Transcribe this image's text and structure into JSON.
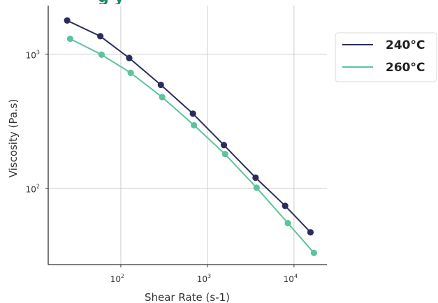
{
  "chart_data": {
    "type": "line",
    "title": "",
    "xlabel": "Shear Rate (s-1)",
    "ylabel": "Viscosity (Pa.s)",
    "xscale": "log",
    "yscale": "log",
    "xlim": [
      14.5,
      24000
    ],
    "ylim": [
      27,
      2300
    ],
    "x_ticks": [
      {
        "value": 100,
        "base": "10",
        "exp": "2"
      },
      {
        "value": 1000,
        "base": "10",
        "exp": "3"
      },
      {
        "value": 10000,
        "base": "10",
        "exp": "4"
      }
    ],
    "y_ticks": [
      {
        "value": 100,
        "base": "10",
        "exp": "2"
      },
      {
        "value": 1000,
        "base": "10",
        "exp": "3"
      }
    ],
    "grid": true,
    "legend_position": "right-top",
    "series": [
      {
        "name": "240°C",
        "color": "#2b2c5e",
        "x": [
          24,
          58,
          125,
          290,
          680,
          1550,
          3600,
          7900,
          15500
        ],
        "y": [
          1780,
          1360,
          935,
          590,
          360,
          210,
          120,
          74,
          47
        ]
      },
      {
        "name": "260°C",
        "color": "#5cc49c",
        "x": [
          26,
          60,
          130,
          300,
          700,
          1600,
          3700,
          8500,
          17000
        ],
        "y": [
          1300,
          990,
          725,
          478,
          295,
          180,
          101,
          55,
          33
        ]
      }
    ]
  }
}
